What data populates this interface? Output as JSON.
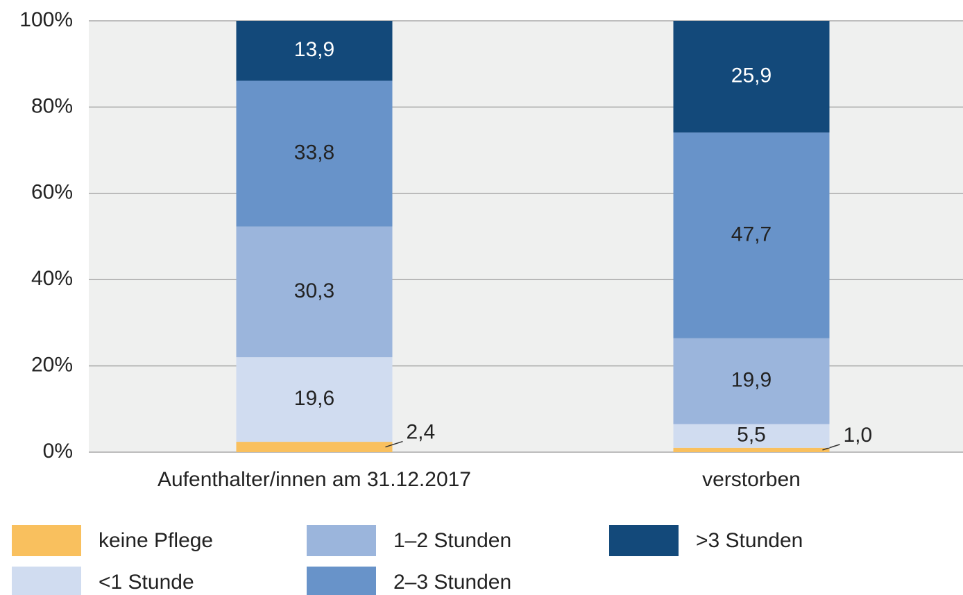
{
  "chart_data": {
    "type": "stacked_bar",
    "categories": [
      "Aufenthalter/innen am 31.12.2017",
      "verstorben"
    ],
    "series": [
      {
        "name": "keine Pflege",
        "color": "#f9c05e",
        "values": [
          2.4,
          1.0
        ],
        "value_labels": [
          "2,4",
          "1,0"
        ]
      },
      {
        "name": "<1 Stunde",
        "color": "#d0dcf0",
        "values": [
          19.6,
          5.5
        ],
        "value_labels": [
          "19,6",
          "5,5"
        ]
      },
      {
        "name": "1–2 Stunden",
        "color": "#9bb5dc",
        "values": [
          30.3,
          19.9
        ],
        "value_labels": [
          "30,3",
          "19,9"
        ]
      },
      {
        "name": "2–3 Stunden",
        "color": "#6893c9",
        "values": [
          33.8,
          47.7
        ],
        "value_labels": [
          "33,8",
          "47,7"
        ]
      },
      {
        "name": ">3 Stunden",
        "color": "#13497a",
        "values": [
          13.9,
          25.9
        ],
        "value_labels": [
          "13,9",
          "25,9"
        ]
      }
    ],
    "ylim": [
      0,
      100
    ],
    "yticks": [
      {
        "value": 0,
        "label": "0%"
      },
      {
        "value": 20,
        "label": "20%"
      },
      {
        "value": 40,
        "label": "40%"
      },
      {
        "value": 60,
        "label": "60%"
      },
      {
        "value": 80,
        "label": "80%"
      },
      {
        "value": 100,
        "label": "100%"
      }
    ],
    "grid": true
  }
}
